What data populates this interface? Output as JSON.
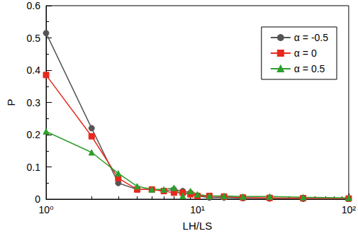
{
  "chart_data": {
    "type": "line",
    "x_label": "LH/LS",
    "y_label": "P",
    "log": "x",
    "grid": false,
    "legend": "top-right",
    "xlim": [
      1,
      100
    ],
    "xticks": [
      {
        "value": 1,
        "label": "10⁰"
      },
      {
        "value": 10,
        "label": "10¹"
      },
      {
        "value": 100,
        "label": "10²"
      }
    ],
    "ylim": [
      0,
      0.6
    ],
    "yticks": [
      0,
      0.1,
      0.2,
      0.3,
      0.4,
      0.5,
      0.6
    ],
    "x": [
      1,
      2,
      3,
      4,
      5,
      6,
      7,
      8,
      9,
      10,
      12,
      15,
      20,
      30,
      50,
      100
    ],
    "series": [
      {
        "name": "α = -0.5",
        "color": "#555555",
        "marker": "circle",
        "values": [
          0.515,
          0.22,
          0.05,
          0.03,
          0.03,
          0.025,
          0.03,
          0.025,
          0.02,
          0.01,
          0.005,
          0.005,
          0.003,
          0.002,
          0.001,
          0.001
        ]
      },
      {
        "name": "α = 0",
        "color": "#e8281e",
        "marker": "square",
        "values": [
          0.385,
          0.195,
          0.065,
          0.03,
          0.03,
          0.025,
          0.02,
          0.02,
          0.015,
          0.01,
          0.01,
          0.008,
          0.005,
          0.004,
          0.003,
          0.002
        ]
      },
      {
        "name": "α = 0.5",
        "color": "#2ca02c",
        "marker": "triangle",
        "values": [
          0.21,
          0.145,
          0.08,
          0.04,
          0.03,
          0.03,
          0.035,
          0.01,
          0.025,
          0.015,
          0.01,
          0.01,
          0.008,
          0.008,
          0.006,
          0.004
        ]
      }
    ]
  }
}
